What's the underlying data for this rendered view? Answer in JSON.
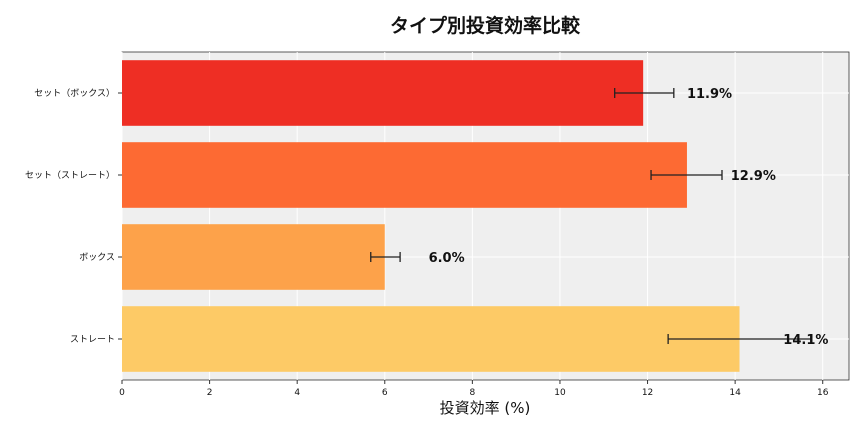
{
  "chart_data": {
    "type": "bar",
    "orientation": "horizontal",
    "title": "タイプ別投資効率比較",
    "xlabel": "投資効率 (%)",
    "ylabel": "",
    "categories": [
      "セット（ボックス）",
      "セット（ストレート）",
      "ボックス",
      "ストレート"
    ],
    "values": [
      11.9,
      12.9,
      6.0,
      14.1
    ],
    "error_low": [
      11.25,
      12.08,
      5.68,
      12.47
    ],
    "error_high": [
      12.6,
      13.7,
      6.35,
      15.75
    ],
    "data_labels": [
      "11.9%",
      "12.9%",
      "6.0%",
      "14.1%"
    ],
    "colors": [
      "#ee2e24",
      "#fd6a33",
      "#fda24a",
      "#fdca66"
    ],
    "xlim": [
      0,
      16.6
    ],
    "xticks": [
      0,
      2,
      4,
      6,
      8,
      10,
      12,
      14,
      16
    ],
    "grid": true,
    "background": "#efefef"
  }
}
